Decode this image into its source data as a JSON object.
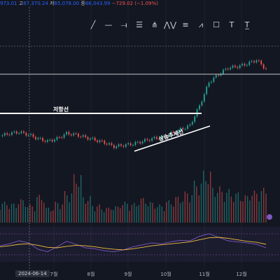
{
  "ohlc": {
    "partial_open": "973.01",
    "high_label": "고",
    "high": "67,370.24",
    "low_label": "저",
    "low": "65,078.00",
    "close_label": "종",
    "close": "66,043.99",
    "change": "−729.02",
    "change_pct": "(−1.09%)"
  },
  "toolbar": {
    "icons": [
      "trend-line-icon",
      "horizontal-line-icon",
      "horizontal-ray-icon",
      "parallel-channel-icon",
      "pitchfork-icon",
      "pattern-icon",
      "fib-retracement-icon",
      "elliott-wave-icon",
      "rectangle-icon",
      "text-icon",
      "anchored-text-icon"
    ],
    "glyphs": [
      "╱",
      "—",
      "⟞",
      "☰",
      "⋔",
      "⋀⋁",
      "≡",
      "⩘",
      "☐",
      "T",
      "T̲"
    ]
  },
  "annotations": {
    "resistance_label": "저항선",
    "support_label": "상승추세선"
  },
  "xaxis": {
    "date_badge": "2024-06-14",
    "months": [
      "7월",
      "8월",
      "9월",
      "10월",
      "11월",
      "12월"
    ]
  },
  "colors": {
    "background": "#131722",
    "up": "#26a69a",
    "down": "#ef5350",
    "price_candle": "#3d5afe",
    "rsi_line": "#7e57c2",
    "rsi_ma": "#f0c040",
    "line": "#ffffff"
  },
  "chart_data": [
    {
      "type": "line",
      "title": "",
      "ylabel": "",
      "x": [
        "2024-06-07",
        "2024-06-14",
        "2024-06-21",
        "2024-06-28",
        "2024-07-05",
        "2024-07-12",
        "2024-07-19",
        "2024-07-26",
        "2024-08-02",
        "2024-08-09",
        "2024-08-16",
        "2024-08-23",
        "2024-08-30",
        "2024-09-06",
        "2024-09-13",
        "2024-09-20",
        "2024-09-27",
        "2024-10-04",
        "2024-10-11",
        "2024-10-18",
        "2024-10-25",
        "2024-11-01",
        "2024-11-08",
        "2024-11-15",
        "2024-11-22",
        "2024-11-29",
        "2024-12-06",
        "2024-12-13",
        "2024-12-17"
      ],
      "series": [
        {
          "values": [
            49.5,
            50.5,
            51.0,
            50.0,
            48.5,
            47.5,
            48.5,
            50.5,
            50.0,
            49.0,
            48.0,
            47.0,
            45.5,
            46.0,
            46.5,
            47.5,
            48.5,
            49.0,
            50.5,
            52.0,
            53.5,
            61.0,
            70.0,
            73.0,
            75.5,
            76.0,
            77.0,
            78.5,
            75.0
          ]
        }
      ]
    },
    {
      "type": "bar",
      "title": "",
      "ylabel": "",
      "series": [
        {
          "values": [
            30,
            28,
            34,
            26,
            40,
            22,
            30,
            45,
            70,
            38,
            26,
            22,
            24,
            30,
            28,
            36,
            30,
            26,
            32,
            38,
            45,
            60,
            75,
            52,
            48,
            44,
            40,
            46,
            50
          ]
        }
      ]
    },
    {
      "type": "line",
      "title": "",
      "ylabel": "",
      "series": [
        {
          "values": [
            52,
            56,
            62,
            58,
            45,
            40,
            50,
            61,
            55,
            48,
            46,
            42,
            40,
            44,
            50,
            54,
            58,
            56,
            60,
            63,
            62,
            71,
            76,
            69,
            62,
            60,
            58,
            55,
            48
          ]
        },
        {
          "values": [
            50,
            52,
            55,
            56,
            53,
            49,
            48,
            51,
            53,
            52,
            50,
            47,
            45,
            44,
            46,
            49,
            52,
            54,
            56,
            58,
            60,
            64,
            68,
            69,
            67,
            64,
            61,
            59,
            55
          ]
        }
      ]
    }
  ]
}
